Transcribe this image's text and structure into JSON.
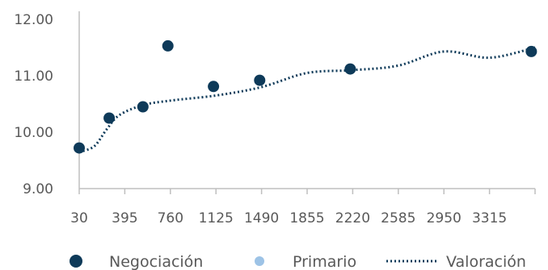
{
  "colors": {
    "negociacion": "#0e3a59",
    "primario": "#9dc3e6",
    "valoracion": "#0e3a59",
    "axis": "#bfbfbf",
    "text": "#595959",
    "background": "#ffffff"
  },
  "chart_data": {
    "type": "scatter",
    "title": "",
    "xlabel": "",
    "ylabel": "",
    "xlim": [
      30,
      3680
    ],
    "ylim": [
      9.0,
      12.0
    ],
    "x_ticks": [
      30,
      395,
      760,
      1125,
      1490,
      1855,
      2220,
      2585,
      2950,
      3315
    ],
    "x_tick_labels": [
      "30",
      "395",
      "760",
      "1125",
      "1490",
      "1855",
      "2220",
      "2585",
      "2950",
      "3315"
    ],
    "y_ticks": [
      9.0,
      10.0,
      11.0,
      12.0
    ],
    "y_tick_labels": [
      "9.00",
      "10.00",
      "11.00",
      "12.00"
    ],
    "grid": false,
    "legend_position": "bottom",
    "series": [
      {
        "name": "Negociación",
        "kind": "scatter",
        "points": [
          {
            "x": 30,
            "y": 9.72
          },
          {
            "x": 270,
            "y": 10.25
          },
          {
            "x": 540,
            "y": 10.45
          },
          {
            "x": 740,
            "y": 11.53
          },
          {
            "x": 1105,
            "y": 10.81
          },
          {
            "x": 1475,
            "y": 10.92
          },
          {
            "x": 2200,
            "y": 11.12
          },
          {
            "x": 3650,
            "y": 11.43
          }
        ]
      },
      {
        "name": "Primario",
        "kind": "scatter",
        "points": []
      },
      {
        "name": "Valoración",
        "kind": "line",
        "style": "dotted",
        "points": [
          {
            "x": 30,
            "y": 9.65
          },
          {
            "x": 150,
            "y": 9.75
          },
          {
            "x": 250,
            "y": 10.05
          },
          {
            "x": 350,
            "y": 10.3
          },
          {
            "x": 540,
            "y": 10.48
          },
          {
            "x": 760,
            "y": 10.56
          },
          {
            "x": 1125,
            "y": 10.65
          },
          {
            "x": 1490,
            "y": 10.8
          },
          {
            "x": 1855,
            "y": 11.05
          },
          {
            "x": 2220,
            "y": 11.1
          },
          {
            "x": 2585,
            "y": 11.18
          },
          {
            "x": 2950,
            "y": 11.43
          },
          {
            "x": 3315,
            "y": 11.32
          },
          {
            "x": 3680,
            "y": 11.5
          }
        ]
      }
    ]
  }
}
